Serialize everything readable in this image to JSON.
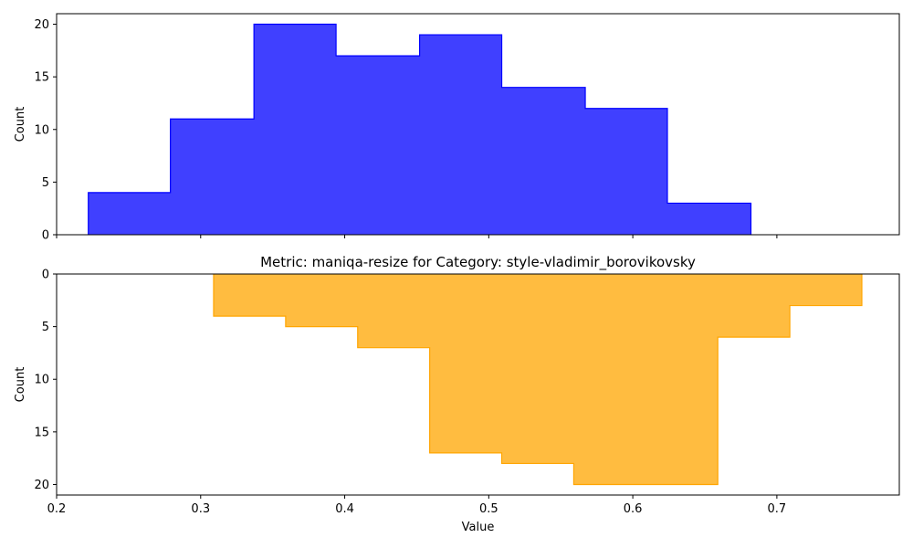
{
  "chart_data": [
    {
      "type": "bar",
      "subtype": "step-histogram",
      "title": "",
      "xlabel": "",
      "ylabel": "Count",
      "color": "#0000ff",
      "fill_opacity": 0.75,
      "bin_edges": [
        0.222,
        0.279,
        0.337,
        0.394,
        0.452,
        0.509,
        0.567,
        0.624,
        0.682
      ],
      "values": [
        4,
        11,
        20,
        17,
        19,
        14,
        12,
        3
      ],
      "xlim": [
        0.2,
        0.785
      ],
      "ylim": [
        0,
        21
      ],
      "y_inverted": false,
      "xticks": [
        0.2,
        0.3,
        0.4,
        0.5,
        0.6,
        0.7
      ],
      "xtick_labels_shown": false,
      "yticks": [
        0,
        5,
        10,
        15,
        20
      ],
      "ytick_labels": [
        "0",
        "5",
        "10",
        "15",
        "20"
      ],
      "grid": false
    },
    {
      "type": "bar",
      "subtype": "step-histogram",
      "title": "Metric: maniqa-resize for Category: style-vladimir_borovikovsky",
      "xlabel": "Value",
      "ylabel": "Count",
      "color": "#ffa500",
      "fill_opacity": 0.75,
      "bin_edges": [
        0.309,
        0.359,
        0.409,
        0.459,
        0.509,
        0.559,
        0.609,
        0.659,
        0.709,
        0.759
      ],
      "values": [
        4,
        5,
        7,
        17,
        18,
        20,
        20,
        6,
        3
      ],
      "xlim": [
        0.2,
        0.785
      ],
      "ylim": [
        0,
        21
      ],
      "y_inverted": true,
      "xticks": [
        0.2,
        0.3,
        0.4,
        0.5,
        0.6,
        0.7
      ],
      "xtick_labels": [
        "0.2",
        "0.3",
        "0.4",
        "0.5",
        "0.6",
        "0.7"
      ],
      "xtick_labels_shown": true,
      "yticks": [
        0,
        5,
        10,
        15,
        20
      ],
      "ytick_labels": [
        "0",
        "5",
        "10",
        "15",
        "20"
      ],
      "grid": false
    }
  ]
}
